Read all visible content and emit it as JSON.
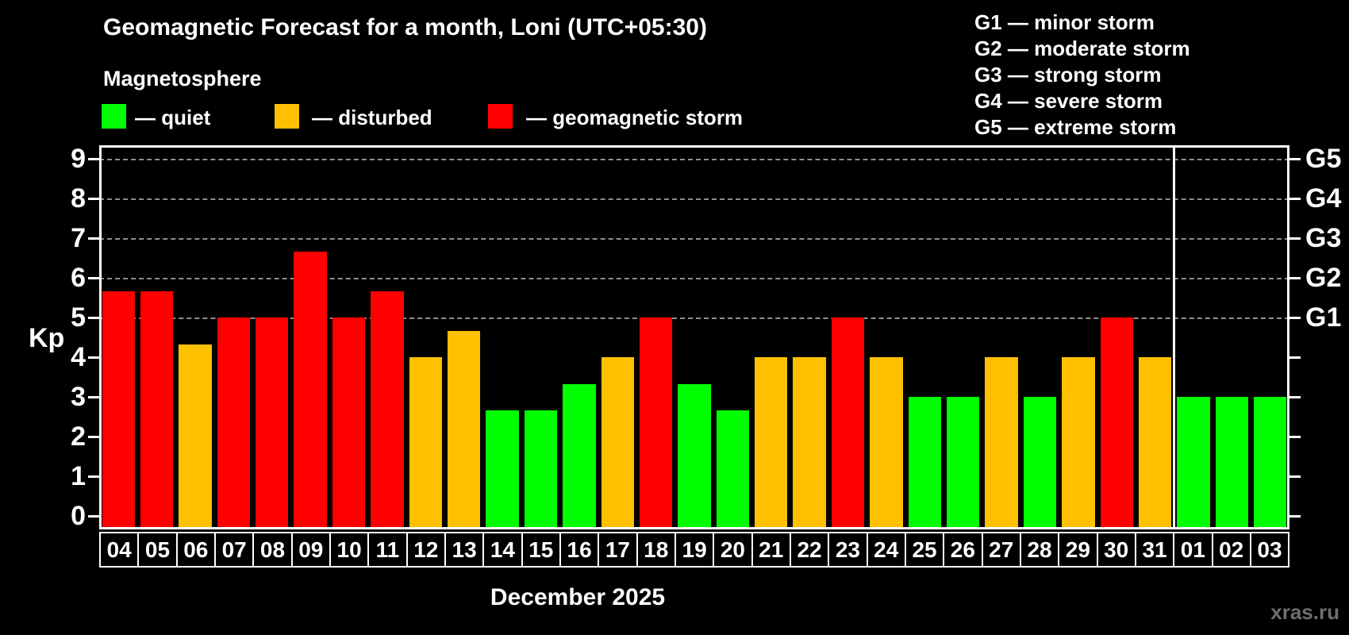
{
  "header": {
    "title": "Geomagnetic Forecast for a month, Loni (UTC+05:30)",
    "subtitle": "Magnetosphere"
  },
  "legend": {
    "items": [
      {
        "key": "quiet",
        "label": "— quiet",
        "color": "#00ff00"
      },
      {
        "key": "disturbed",
        "label": "— disturbed",
        "color": "#ffc000"
      },
      {
        "key": "storm",
        "label": "— geomagnetic storm",
        "color": "#ff0000"
      }
    ]
  },
  "g_legend": [
    "G1 — minor storm",
    "G2 — moderate storm",
    "G3 — strong storm",
    "G4 — severe storm",
    "G5 — extreme storm"
  ],
  "chart_data": {
    "type": "bar",
    "title": "Geomagnetic Forecast for a month, Loni (UTC+05:30)",
    "xlabel": "December 2025",
    "ylabel": "Kp",
    "ylim": [
      0,
      9.35
    ],
    "yticks": [
      0,
      1,
      2,
      3,
      4,
      5,
      6,
      7,
      8,
      9
    ],
    "gridline_levels": [
      5,
      6,
      7,
      8,
      9
    ],
    "right_axis_labels": [
      {
        "kp": 5,
        "label": "G1"
      },
      {
        "kp": 6,
        "label": "G2"
      },
      {
        "kp": 7,
        "label": "G3"
      },
      {
        "kp": 8,
        "label": "G4"
      },
      {
        "kp": 9,
        "label": "G5"
      }
    ],
    "grid": "dashed-horizontal",
    "legend_position": "top-left",
    "categories": [
      "04",
      "05",
      "06",
      "07",
      "08",
      "09",
      "10",
      "11",
      "12",
      "13",
      "14",
      "15",
      "16",
      "17",
      "18",
      "19",
      "20",
      "21",
      "22",
      "23",
      "24",
      "25",
      "26",
      "27",
      "28",
      "29",
      "30",
      "31",
      "01",
      "02",
      "03"
    ],
    "values": [
      5.67,
      5.67,
      4.33,
      5,
      5,
      6.67,
      5,
      5.67,
      4,
      4.67,
      2.67,
      2.67,
      3.33,
      4,
      5,
      3.33,
      2.67,
      4,
      4,
      5,
      4,
      3,
      3,
      4,
      3,
      4,
      5,
      4,
      3,
      3,
      3
    ],
    "statuses": [
      "storm",
      "storm",
      "disturbed",
      "storm",
      "storm",
      "storm",
      "storm",
      "storm",
      "disturbed",
      "disturbed",
      "quiet",
      "quiet",
      "quiet",
      "disturbed",
      "storm",
      "quiet",
      "quiet",
      "disturbed",
      "disturbed",
      "storm",
      "disturbed",
      "quiet",
      "quiet",
      "disturbed",
      "quiet",
      "disturbed",
      "storm",
      "disturbed",
      "quiet",
      "quiet",
      "quiet"
    ],
    "status_colors": {
      "quiet": "#00ff00",
      "disturbed": "#ffc000",
      "storm": "#ff0000"
    },
    "separator_after_index": 27
  },
  "footer": {
    "month_label": "December 2025",
    "watermark": "xras.ru"
  }
}
